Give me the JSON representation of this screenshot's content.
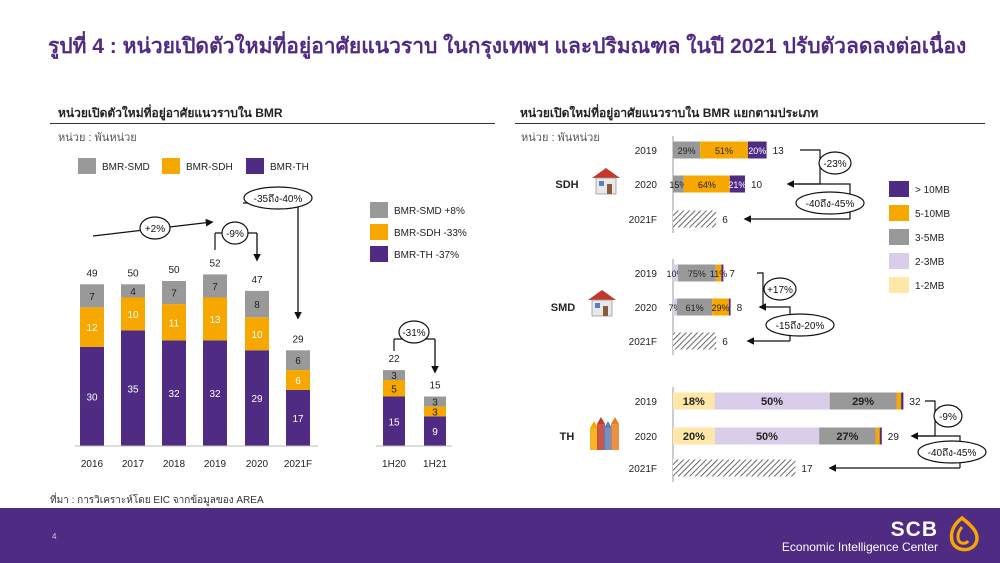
{
  "title": "รูปที่ 4 : หน่วยเปิดตัวใหม่ที่อยู่อาศัยแนวราบ ในกรุงเทพฯ และปริมณฑล ในปี 2021 ปรับตัวลดลงต่อเนื่อง",
  "left": {
    "subtitle": "หน่วยเปิดตัวใหม่ที่อยู่อาศัยแนวราบใน BMR",
    "unit": "หน่วย : พันหน่วย",
    "legend": [
      "BMR-SMD",
      "BMR-SDH",
      "BMR-TH"
    ],
    "changes": [
      {
        "label": "BMR-SMD +8%",
        "color": "#999999"
      },
      {
        "label": "BMR-SDH -33%",
        "color": "#f6a800"
      },
      {
        "label": "BMR-TH -37%",
        "color": "#4f2b83"
      }
    ],
    "annotations": {
      "growth_2016_2019": "+2%",
      "change_2020": "-9%",
      "change_2021": "-35ถึง-40%",
      "change_half": "-31%"
    }
  },
  "right": {
    "subtitle": "หน่วยเปิดใหม่ที่อยู่อาศัยแนวราบใน BMR แยกตามประเภท",
    "unit": "หน่วย : พันหน่วย",
    "legend": [
      "> 10MB",
      "5-10MB",
      "3-5MB",
      "2-3MB",
      "1-2MB"
    ],
    "annotations": {
      "sdh_change_2020": "-23%",
      "sdh_change_2021": "-40ถึง-45%",
      "smd_change_2020": "+17%",
      "smd_change_2021": "-15ถึง-20%",
      "th_change_2020": "-9%",
      "th_change_2021": "-40ถึง-45%"
    }
  },
  "source": "ที่มา : การวิเคราะห์โดย EIC จากข้อมูลของ AREA",
  "page_number": "4",
  "brand": {
    "name": "SCB",
    "tagline": "Economic Intelligence Center"
  },
  "colors": {
    "TH": "#4f2b83",
    "SDH": "#f6a800",
    "SMD": "#999999",
    "gt10": "#4f2b83",
    "5to10": "#f6a800",
    "3to5": "#999999",
    "2to3": "#d9cdea",
    "1to2": "#ffe7a8"
  },
  "chart_data": [
    {
      "type": "bar",
      "stacked": true,
      "categories": [
        "2016",
        "2017",
        "2018",
        "2019",
        "2020",
        "2021F"
      ],
      "series": [
        {
          "name": "BMR-TH",
          "values": [
            30,
            35,
            32,
            32,
            29,
            17
          ]
        },
        {
          "name": "BMR-SDH",
          "values": [
            12,
            10,
            11,
            13,
            10,
            6
          ]
        },
        {
          "name": "BMR-SMD",
          "values": [
            7,
            4,
            7,
            7,
            8,
            6
          ]
        }
      ],
      "totals": [
        49,
        50,
        50,
        52,
        47,
        29
      ]
    },
    {
      "type": "bar",
      "stacked": true,
      "categories": [
        "1H20",
        "1H21"
      ],
      "series": [
        {
          "name": "BMR-TH",
          "values": [
            15,
            9
          ]
        },
        {
          "name": "BMR-SDH",
          "values": [
            5,
            3
          ]
        },
        {
          "name": "BMR-SMD",
          "values": [
            3,
            3
          ]
        }
      ],
      "totals": [
        22,
        15
      ]
    },
    {
      "type": "bar",
      "orientation": "horizontal",
      "stacked": true,
      "share_labels": "percent",
      "groups": [
        {
          "name": "SDH",
          "rows": [
            {
              "year": "2019",
              "total": 13,
              "shares": {
                "1-2MB": 0,
                "2-3MB": 0,
                "3-5MB": 29,
                "5-10MB": 51,
                "> 10MB": 20
              }
            },
            {
              "year": "2020",
              "total": 10,
              "shares": {
                "1-2MB": 0,
                "2-3MB": 0,
                "3-5MB": 15,
                "5-10MB": 64,
                "> 10MB": 21
              }
            },
            {
              "year": "2021F",
              "total": 6,
              "shares": null
            }
          ]
        },
        {
          "name": "SMD",
          "rows": [
            {
              "year": "2019",
              "total": 7,
              "shares": {
                "1-2MB": 0,
                "2-3MB": 10,
                "3-5MB": 75,
                "5-10MB": 11,
                "> 10MB": 4
              }
            },
            {
              "year": "2020",
              "total": 8,
              "shares": {
                "1-2MB": 0,
                "2-3MB": 7,
                "3-5MB": 61,
                "5-10MB": 29,
                "> 10MB": 3
              }
            },
            {
              "year": "2021F",
              "total": 6,
              "shares": null
            }
          ]
        },
        {
          "name": "TH",
          "rows": [
            {
              "year": "2019",
              "total": 32,
              "shares": {
                "1-2MB": 18,
                "2-3MB": 50,
                "3-5MB": 29,
                "5-10MB": 2,
                "> 10MB": 1
              }
            },
            {
              "year": "2020",
              "total": 29,
              "shares": {
                "1-2MB": 20,
                "2-3MB": 50,
                "3-5MB": 27,
                "5-10MB": 2,
                "> 10MB": 1
              }
            },
            {
              "year": "2021F",
              "total": 17,
              "shares": null
            }
          ]
        }
      ]
    }
  ]
}
